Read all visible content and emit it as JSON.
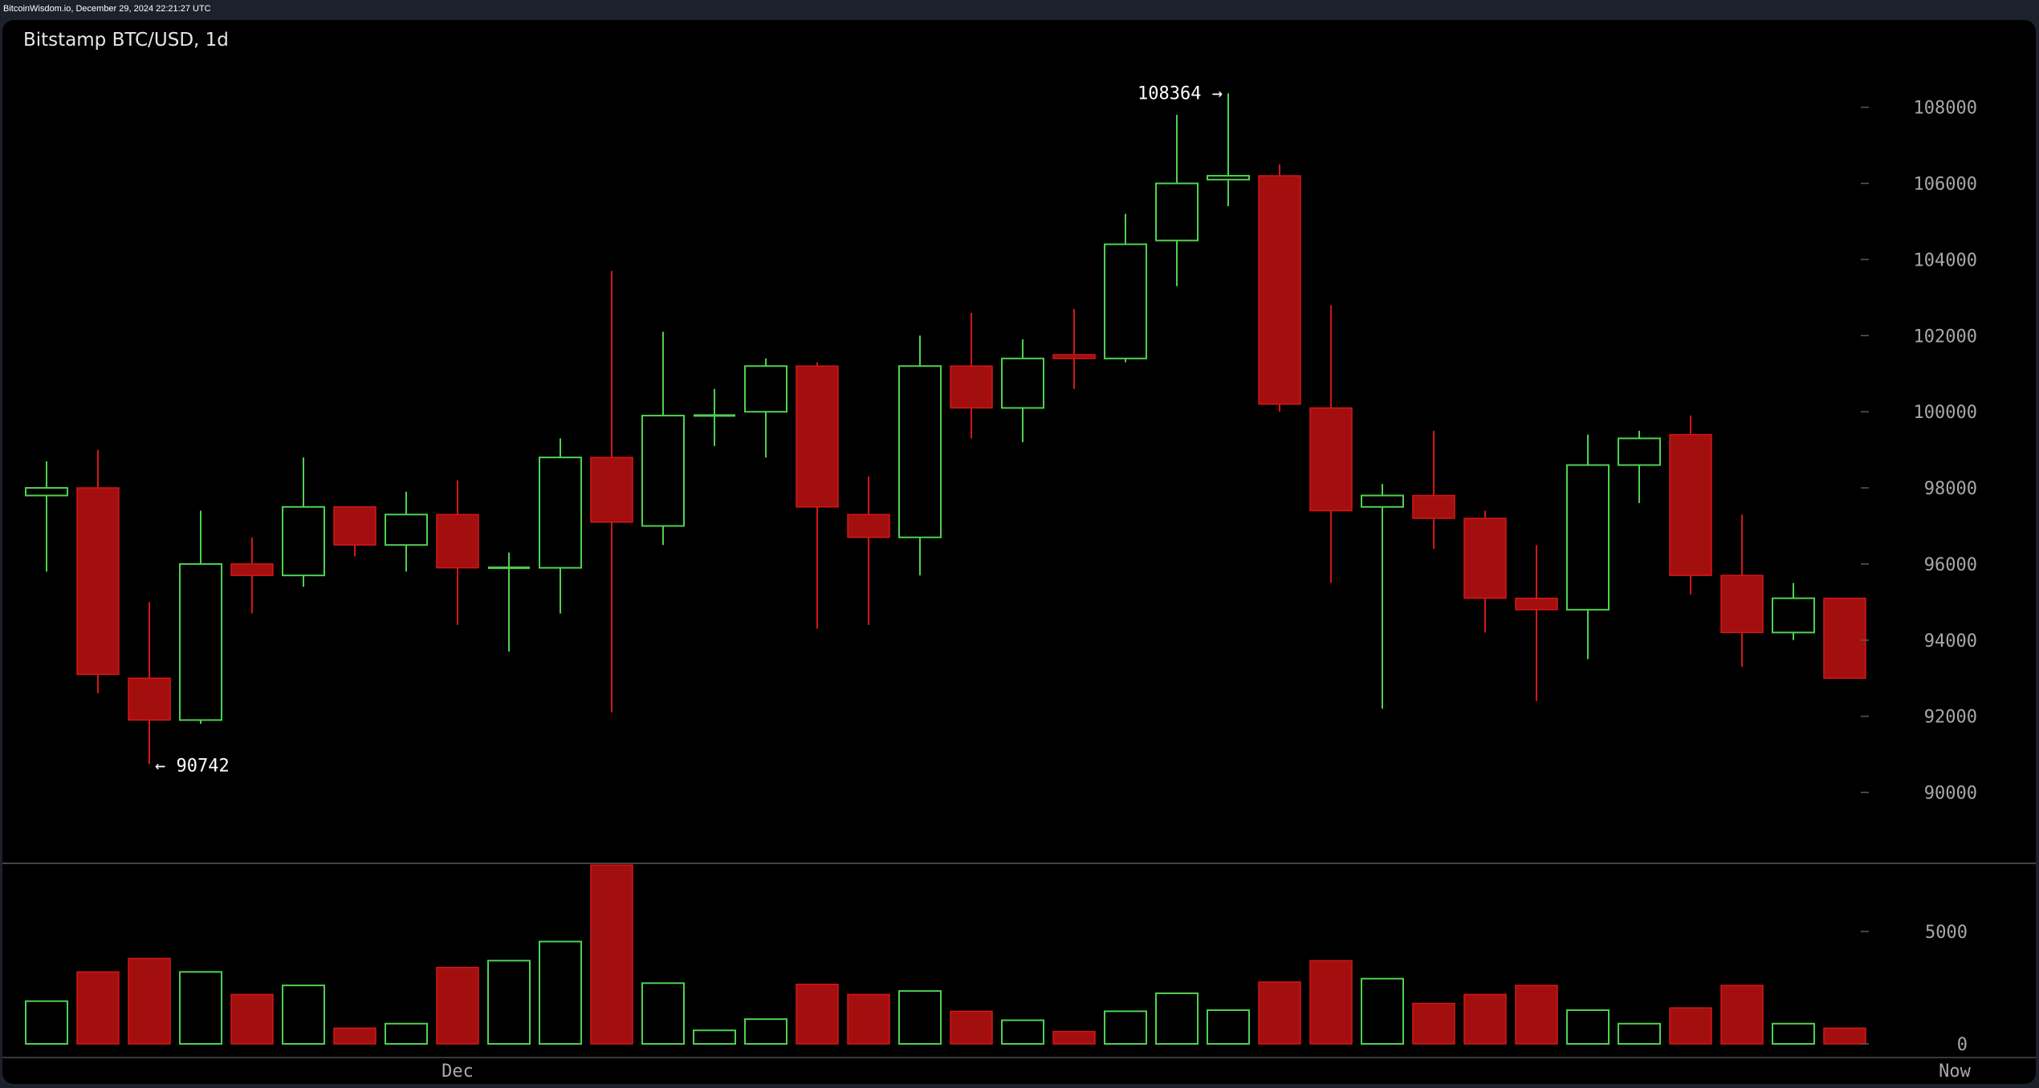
{
  "header": {
    "text": "BitcoinWisdom.io, December 29, 2024 22:21:27 UTC"
  },
  "chart_data": {
    "type": "candlestick",
    "title": "Bitstamp BTC/USD, 1d",
    "colors": {
      "up": "#4fd14f",
      "down": "#a30f0f",
      "down_border": "#d41717",
      "axis_text": "#a8a8a8",
      "background": "#000000"
    },
    "price_axis": {
      "ticks": [
        90000,
        92000,
        94000,
        96000,
        98000,
        100000,
        102000,
        104000,
        106000,
        108000
      ],
      "range": [
        89000,
        109300
      ]
    },
    "volume_axis": {
      "ticks": [
        0,
        5000
      ],
      "range": [
        0,
        7600
      ]
    },
    "x_labels": [
      {
        "index": 8,
        "label": "Dec"
      },
      {
        "index": 37,
        "label": "Now"
      }
    ],
    "annotations": {
      "high": {
        "index": 23,
        "value": 108364,
        "text": "108364 →"
      },
      "low": {
        "index": 2,
        "value": 90742,
        "text": "← 90742"
      }
    },
    "candles": [
      {
        "o": 97800,
        "h": 98700,
        "l": 95800,
        "c": 98000,
        "v": 1900
      },
      {
        "o": 98000,
        "h": 99000,
        "l": 92600,
        "c": 93100,
        "v": 3200
      },
      {
        "o": 93000,
        "h": 95000,
        "l": 90742,
        "c": 91900,
        "v": 3800
      },
      {
        "o": 91900,
        "h": 97400,
        "l": 91800,
        "c": 96000,
        "v": 3200
      },
      {
        "o": 96000,
        "h": 96700,
        "l": 94700,
        "c": 95700,
        "v": 2200
      },
      {
        "o": 95700,
        "h": 98800,
        "l": 95400,
        "c": 97500,
        "v": 2600
      },
      {
        "o": 97500,
        "h": 97500,
        "l": 96200,
        "c": 96500,
        "v": 700
      },
      {
        "o": 96500,
        "h": 97900,
        "l": 95800,
        "c": 97300,
        "v": 900
      },
      {
        "o": 97300,
        "h": 98200,
        "l": 94400,
        "c": 95900,
        "v": 3400
      },
      {
        "o": 95900,
        "h": 96300,
        "l": 93700,
        "c": 95900,
        "v": 3700
      },
      {
        "o": 95900,
        "h": 99300,
        "l": 94700,
        "c": 98800,
        "v": 4550
      },
      {
        "o": 98800,
        "h": 103700,
        "l": 92100,
        "c": 97100,
        "v": 7950
      },
      {
        "o": 97000,
        "h": 102100,
        "l": 96500,
        "c": 99900,
        "v": 2700
      },
      {
        "o": 99900,
        "h": 100600,
        "l": 99100,
        "c": 99900,
        "v": 600
      },
      {
        "o": 100000,
        "h": 101400,
        "l": 98800,
        "c": 101200,
        "v": 1100
      },
      {
        "o": 101200,
        "h": 101300,
        "l": 94300,
        "c": 97500,
        "v": 2650
      },
      {
        "o": 97300,
        "h": 98300,
        "l": 94400,
        "c": 96700,
        "v": 2200
      },
      {
        "o": 96700,
        "h": 102000,
        "l": 95700,
        "c": 101200,
        "v": 2350
      },
      {
        "o": 101200,
        "h": 102600,
        "l": 99300,
        "c": 100100,
        "v": 1450
      },
      {
        "o": 100100,
        "h": 101900,
        "l": 99200,
        "c": 101400,
        "v": 1050
      },
      {
        "o": 101500,
        "h": 102700,
        "l": 100600,
        "c": 101400,
        "v": 550
      },
      {
        "o": 101400,
        "h": 105200,
        "l": 101300,
        "c": 104400,
        "v": 1450
      },
      {
        "o": 104500,
        "h": 107800,
        "l": 103300,
        "c": 106000,
        "v": 2250
      },
      {
        "o": 106100,
        "h": 108364,
        "l": 105400,
        "c": 106200,
        "v": 1500
      },
      {
        "o": 106200,
        "h": 106500,
        "l": 100000,
        "c": 100200,
        "v": 2750
      },
      {
        "o": 100100,
        "h": 102800,
        "l": 95500,
        "c": 97400,
        "v": 3700
      },
      {
        "o": 97500,
        "h": 98100,
        "l": 92200,
        "c": 97800,
        "v": 2900
      },
      {
        "o": 97800,
        "h": 99500,
        "l": 96400,
        "c": 97200,
        "v": 1800
      },
      {
        "o": 97200,
        "h": 97400,
        "l": 94200,
        "c": 95100,
        "v": 2200
      },
      {
        "o": 95100,
        "h": 96500,
        "l": 92400,
        "c": 94800,
        "v": 2600
      },
      {
        "o": 94800,
        "h": 99400,
        "l": 93500,
        "c": 98600,
        "v": 1500
      },
      {
        "o": 98600,
        "h": 99500,
        "l": 97600,
        "c": 99300,
        "v": 900
      },
      {
        "o": 99400,
        "h": 99900,
        "l": 95200,
        "c": 95700,
        "v": 1600
      },
      {
        "o": 95700,
        "h": 97300,
        "l": 93300,
        "c": 94200,
        "v": 2600
      },
      {
        "o": 94200,
        "h": 95500,
        "l": 94000,
        "c": 95100,
        "v": 900
      },
      {
        "o": 95100,
        "h": 95100,
        "l": 93000,
        "c": 93000,
        "v": 700
      }
    ]
  }
}
